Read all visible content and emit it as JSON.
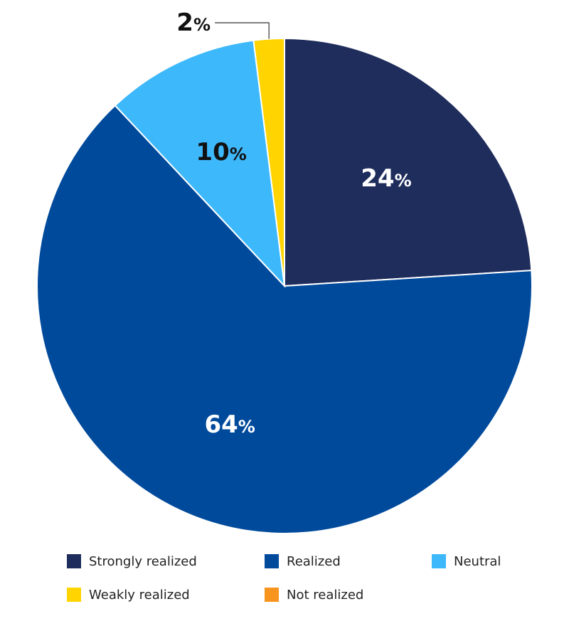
{
  "chart_data": {
    "type": "pie",
    "categories": [
      "Strongly realized",
      "Realized",
      "Neutral",
      "Weakly realized",
      "Not realized"
    ],
    "values": [
      24,
      64,
      10,
      2,
      0
    ],
    "value_labels": [
      "24",
      "64",
      "10",
      "2",
      ""
    ],
    "unit": "%",
    "colors": [
      "#1f2d5c",
      "#004a9c",
      "#3db8fb",
      "#ffd400",
      "#f7941d"
    ],
    "label_colors": [
      "#ffffff",
      "#ffffff",
      "#111111",
      "#111111",
      "#111111"
    ],
    "start": "12 o'clock",
    "direction": "clockwise",
    "legend_position": "bottom"
  }
}
